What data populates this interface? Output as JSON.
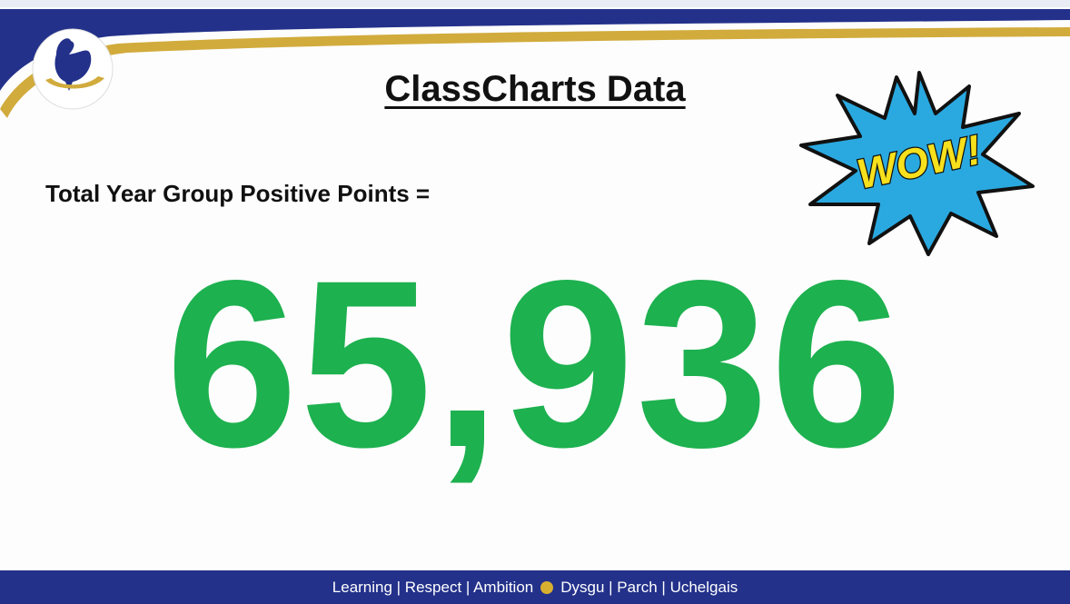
{
  "header": {
    "title": "ClassCharts Data"
  },
  "metric": {
    "label": "Total Year Group Positive Points =",
    "value": "65,936"
  },
  "badge": {
    "text": "WOW!"
  },
  "footer": {
    "english": "Learning | Respect | Ambition",
    "welsh": "Dysgu | Parch | Uchelgais"
  }
}
